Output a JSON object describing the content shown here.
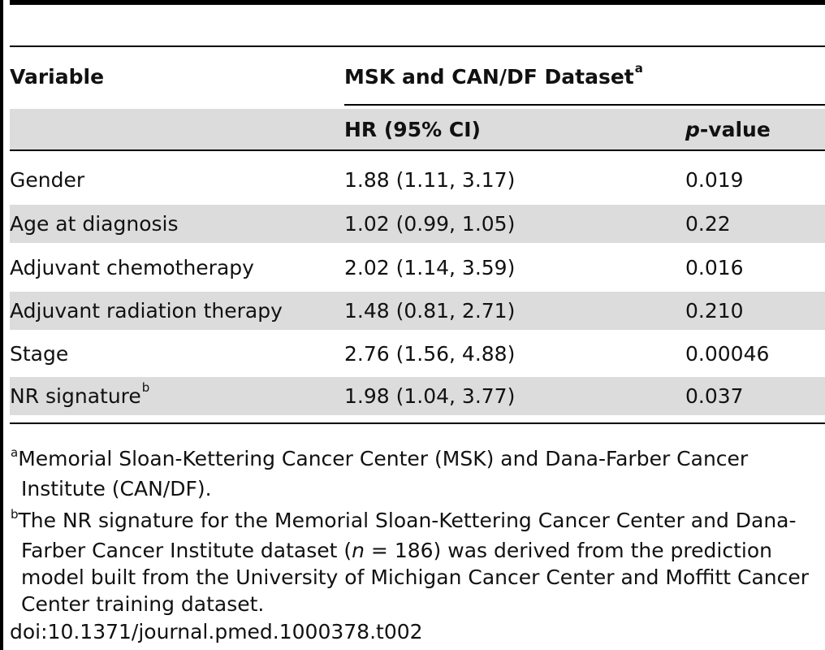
{
  "table": {
    "header": {
      "variable": "Variable",
      "dataset": "MSK and CAN/DF Dataset",
      "dataset_sup": "a",
      "hr": "HR (95% CI)",
      "p_italic": "p",
      "p_rest": "-value"
    },
    "rows": [
      {
        "variable": "Gender",
        "sup": "",
        "hr": "1.88 (1.11, 3.17)",
        "p": "0.019"
      },
      {
        "variable": "Age at diagnosis",
        "sup": "",
        "hr": "1.02 (0.99, 1.05)",
        "p": "0.22"
      },
      {
        "variable": "Adjuvant chemotherapy",
        "sup": "",
        "hr": "2.02 (1.14, 3.59)",
        "p": "0.016"
      },
      {
        "variable": "Adjuvant radiation therapy",
        "sup": "",
        "hr": "1.48 (0.81, 2.71)",
        "p": "0.210"
      },
      {
        "variable": "Stage",
        "sup": "",
        "hr": "2.76 (1.56, 4.88)",
        "p": "0.00046"
      },
      {
        "variable": "NR signature",
        "sup": "b",
        "hr": "1.98 (1.04, 3.77)",
        "p": "0.037"
      }
    ]
  },
  "footnotes": {
    "a": {
      "mark": "a",
      "line1": "Memorial Sloan-Kettering Cancer Center (MSK) and Dana-Farber Cancer",
      "line2": "Institute (CAN/DF)."
    },
    "b": {
      "mark": "b",
      "line1": "The NR signature for the Memorial Sloan-Kettering Cancer Center and Dana-",
      "line2_pre": "Farber Cancer Institute dataset (",
      "line2_n": "n",
      "line2_post": " = 186) was derived from the prediction",
      "line3": "model built from the University of Michigan Cancer Center and Moffitt Cancer",
      "line4": "Center training dataset."
    }
  },
  "doi": "doi:10.1371/journal.pmed.1000378.t002"
}
